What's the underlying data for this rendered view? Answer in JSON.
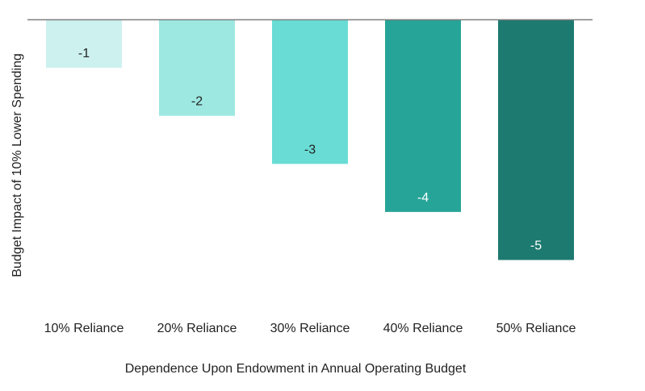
{
  "chart_data": {
    "type": "bar",
    "title": "",
    "xlabel": "Dependence Upon Endowment in Annual Operating Budget",
    "ylabel": "Budget Impact of 10% Lower Spending",
    "categories": [
      "10% Reliance",
      "20% Reliance",
      "30% Reliance",
      "40% Reliance",
      "50% Reliance"
    ],
    "values": [
      -1,
      -2,
      -3,
      -4,
      -5
    ],
    "data_labels": [
      "-1",
      "-2",
      "-3",
      "-4",
      "-5"
    ],
    "ylim": [
      -6,
      0
    ],
    "grid": false,
    "legend": "none",
    "bar_colors": [
      "#cdf1ee",
      "#9ee8e2",
      "#69ddd5",
      "#26a498",
      "#1d7a70"
    ],
    "label_colors": [
      "#222222",
      "#222222",
      "#222222",
      "#ffffff",
      "#ffffff"
    ],
    "axis_line_color": "#7f7f7f"
  }
}
